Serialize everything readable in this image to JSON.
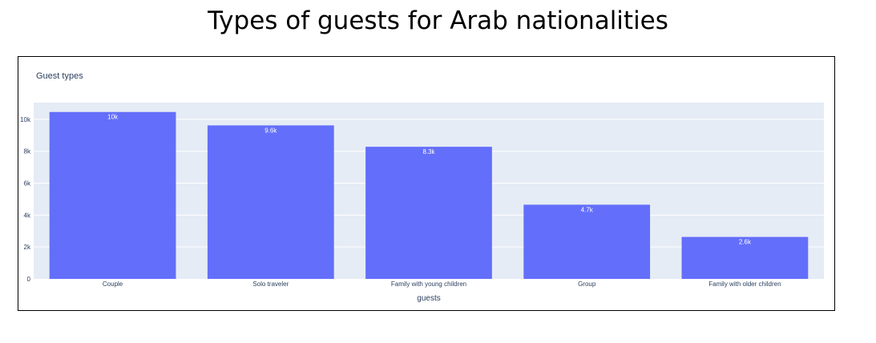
{
  "page_title": "Types of guests for Arab nationalities",
  "chart_data": {
    "type": "bar",
    "title": "Guest types",
    "xlabel": "guests",
    "ylabel": "",
    "categories": [
      "Couple",
      "Solo traveler",
      "Family with young children",
      "Group",
      "Family with older children"
    ],
    "values": [
      10460,
      9620,
      8280,
      4650,
      2630
    ],
    "bar_labels": [
      "10k",
      "9.6k",
      "8.3k",
      "4.7k",
      "2.6k"
    ],
    "ylim": [
      0,
      11050
    ],
    "yticks": [
      0,
      2000,
      4000,
      6000,
      8000,
      10000
    ],
    "ytick_labels": [
      "0",
      "2k",
      "4k",
      "6k",
      "8k",
      "10k"
    ],
    "grid": true,
    "colors": {
      "bar": "#636efa",
      "plot_bg": "#e5ecf6",
      "grid": "#ffffff",
      "text": "#2a3f5f"
    }
  }
}
